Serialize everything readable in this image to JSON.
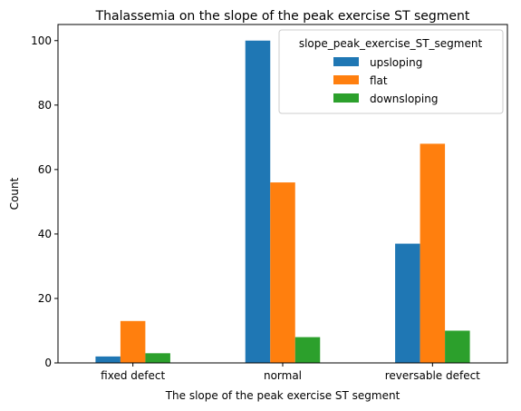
{
  "chart_data": {
    "type": "bar",
    "title": "Thalassemia on the slope of the peak exercise ST segment",
    "xlabel": "The slope of the peak exercise ST segment",
    "ylabel": "Count",
    "categories": [
      "fixed defect",
      "normal",
      "reversable defect"
    ],
    "series": [
      {
        "name": "upsloping",
        "values": [
          2,
          100,
          37
        ],
        "color": "#1f77b4"
      },
      {
        "name": "flat",
        "values": [
          13,
          56,
          68
        ],
        "color": "#ff7f0e"
      },
      {
        "name": "downsloping",
        "values": [
          3,
          8,
          10
        ],
        "color": "#2ca02c"
      }
    ],
    "ylim": [
      0,
      105
    ],
    "yticks": [
      0,
      20,
      40,
      60,
      80,
      100
    ],
    "legend": {
      "title": "slope_peak_exercise_ST_segment",
      "placement": "top-right"
    },
    "grid": false
  }
}
